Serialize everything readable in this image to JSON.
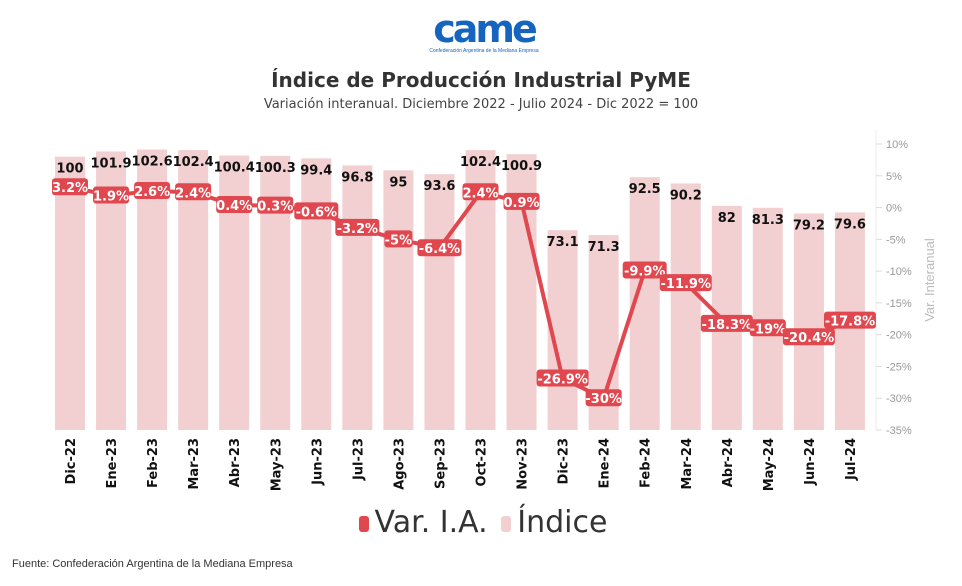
{
  "logo": {
    "text": "came",
    "subtext": "Confederación Argentina de la Mediana Empresa"
  },
  "chart_data": {
    "type": "bar+line",
    "title": "Índice de Producción Industrial PyME",
    "subtitle": "Variación interanual. Diciembre 2022 - Julio 2024 - Dic 2022 = 100",
    "categories": [
      "Dic-22",
      "Ene-23",
      "Feb-23",
      "Mar-23",
      "Abr-23",
      "May-23",
      "Jun-23",
      "Jul-23",
      "Ago-23",
      "Sep-23",
      "Oct-23",
      "Nov-23",
      "Dic-23",
      "Ene-24",
      "Feb-24",
      "Mar-24",
      "Abr-24",
      "May-24",
      "Jun-24",
      "Jul-24"
    ],
    "series": [
      {
        "name": "Índice",
        "type": "bar",
        "color": "#f2d0d2",
        "values": [
          100,
          101.9,
          102.6,
          102.4,
          100.4,
          100.3,
          99.4,
          96.8,
          95,
          93.6,
          102.4,
          100.9,
          73.1,
          71.3,
          92.5,
          90.2,
          82,
          81.3,
          79.2,
          79.6
        ]
      },
      {
        "name": "Var. I.A.",
        "type": "line",
        "color": "#e0474f",
        "values": [
          3.2,
          1.9,
          2.6,
          2.4,
          0.4,
          0.3,
          -0.6,
          -3.2,
          -5,
          -6.4,
          2.4,
          0.9,
          -26.9,
          -30,
          -9.9,
          -11.9,
          -18.3,
          -19,
          -20.4,
          -17.8
        ]
      }
    ],
    "y2label": "Var. Interanual",
    "y2lim": [
      -35,
      10
    ],
    "y2ticks": [
      "10%",
      "5%",
      "0%",
      "-5%",
      "-10%",
      "-15%",
      "-20%",
      "-25%",
      "-30%",
      "-35%"
    ],
    "ylim": [
      0,
      105
    ],
    "legend": [
      "Var. I.A.",
      "Índice"
    ],
    "legend_position": "bottom"
  },
  "footer": "Fuente: Confederación Argentina de la Mediana Empresa"
}
